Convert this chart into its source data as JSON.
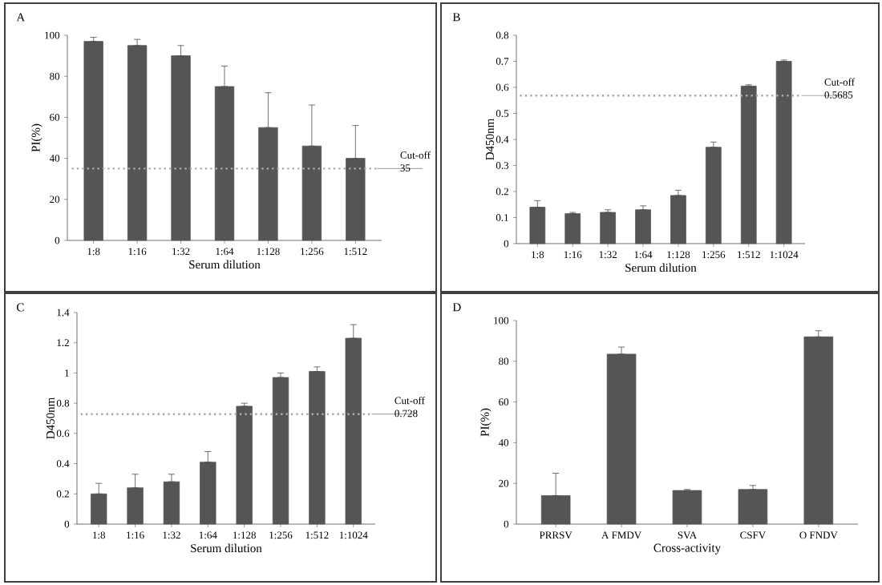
{
  "chart_data": [
    {
      "type": "bar",
      "title": "A",
      "xlabel": "Serum dilution",
      "ylabel": "PI(%)",
      "categories": [
        "1:8",
        "1:16",
        "1:32",
        "1:64",
        "1:128",
        "1:256",
        "1:512"
      ],
      "values": [
        97,
        95,
        90,
        75,
        55,
        46,
        40
      ],
      "errors": [
        [
          97,
          99
        ],
        [
          95,
          98
        ],
        [
          90,
          95
        ],
        [
          75,
          85
        ],
        [
          55,
          72
        ],
        [
          46,
          66
        ],
        [
          40,
          56
        ]
      ],
      "color": "#555555",
      "ylim": [
        0,
        100
      ],
      "yticks": [
        0,
        20,
        40,
        60,
        80,
        100
      ],
      "ref_lines": [
        {
          "axis": "y",
          "value": 35,
          "label": "Cut-off 35",
          "color": "#aaaaaa",
          "line_style": "dotted"
        }
      ]
    },
    {
      "type": "bar",
      "title": "B",
      "xlabel": "Serum dilution",
      "ylabel": "D450nm",
      "categories": [
        "1:8",
        "1:16",
        "1:32",
        "1:64",
        "1:128",
        "1:256",
        "1:512",
        "1:1024"
      ],
      "values": [
        0.14,
        0.115,
        0.12,
        0.13,
        0.185,
        0.37,
        0.605,
        0.7
      ],
      "errors": [
        [
          0.14,
          0.165
        ],
        [
          0.115,
          0.12
        ],
        [
          0.12,
          0.13
        ],
        [
          0.13,
          0.145
        ],
        [
          0.185,
          0.205
        ],
        [
          0.37,
          0.39
        ],
        [
          0.605,
          0.61
        ],
        [
          0.7,
          0.705
        ]
      ],
      "color": "#555555",
      "ylim": [
        0,
        0.8
      ],
      "yticks": [
        0,
        0.1,
        0.2,
        0.3,
        0.4,
        0.5,
        0.6,
        0.7,
        0.8
      ],
      "ref_lines": [
        {
          "axis": "y",
          "value": 0.5685,
          "label": "Cut-off 0.5685",
          "color": "#aaaaaa",
          "line_style": "dotted"
        }
      ]
    },
    {
      "type": "bar",
      "title": "C",
      "xlabel": "Serum dilution",
      "ylabel": "D450nm",
      "categories": [
        "1:8",
        "1:16",
        "1:32",
        "1:64",
        "1:128",
        "1:256",
        "1:512",
        "1:1024"
      ],
      "values": [
        0.2,
        0.24,
        0.28,
        0.41,
        0.78,
        0.97,
        1.01,
        1.23
      ],
      "errors": [
        [
          0.2,
          0.27
        ],
        [
          0.24,
          0.33
        ],
        [
          0.28,
          0.33
        ],
        [
          0.41,
          0.48
        ],
        [
          0.78,
          0.8
        ],
        [
          0.97,
          1.0
        ],
        [
          1.01,
          1.04
        ],
        [
          1.23,
          1.32
        ]
      ],
      "color": "#555555",
      "ylim": [
        0,
        1.4
      ],
      "yticks": [
        0,
        0.2,
        0.4,
        0.6,
        0.8,
        1,
        1.2,
        1.4
      ],
      "ref_lines": [
        {
          "axis": "y",
          "value": 0.728,
          "label": "Cut-off 0.728",
          "color": "#aaaaaa",
          "line_style": "dotted"
        }
      ]
    },
    {
      "type": "bar",
      "title": "D",
      "xlabel": "Cross-activity",
      "ylabel": "PI(%)",
      "categories": [
        "PRRSV",
        "A FMDV",
        "SVA",
        "CSFV",
        "O  FNDV"
      ],
      "values": [
        14,
        83.5,
        16.5,
        17,
        92
      ],
      "errors": [
        [
          14,
          25
        ],
        [
          83.5,
          87
        ],
        [
          16.5,
          17
        ],
        [
          17,
          19
        ],
        [
          92,
          95
        ]
      ],
      "color": "#555555",
      "ylim": [
        0,
        100
      ],
      "yticks": [
        0,
        20,
        40,
        60,
        80,
        100
      ]
    }
  ]
}
